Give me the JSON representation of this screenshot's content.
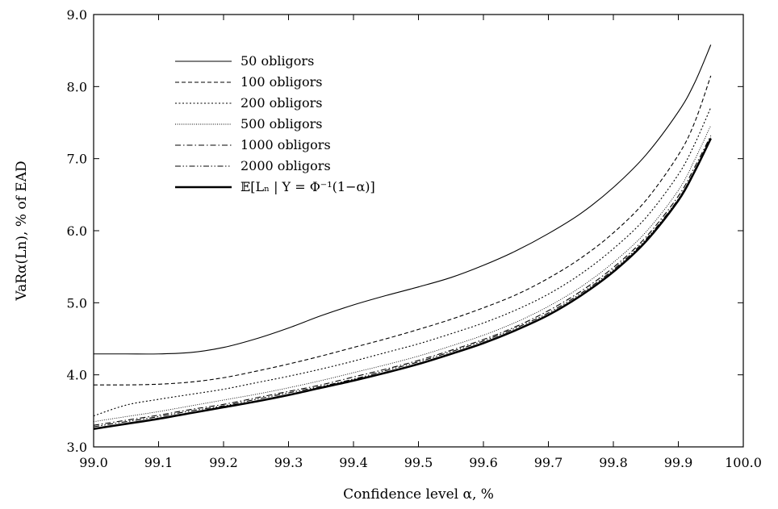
{
  "chart_data": {
    "type": "line",
    "title": "",
    "xlabel": "Confidence level α, %",
    "ylabel": "VaRα(Ln), % of EAD",
    "xlim": [
      99.0,
      100.0
    ],
    "ylim": [
      3.0,
      9.0
    ],
    "xticks": [
      "99.0",
      "99.1",
      "99.2",
      "99.3",
      "99.4",
      "99.5",
      "99.6",
      "99.7",
      "99.8",
      "99.9",
      "100.0"
    ],
    "yticks": [
      "3.0",
      "4.0",
      "5.0",
      "6.0",
      "7.0",
      "8.0",
      "9.0"
    ],
    "grid": false,
    "legend_position": "top-left",
    "x": [
      99.0,
      99.05,
      99.1,
      99.15,
      99.2,
      99.25,
      99.3,
      99.35,
      99.4,
      99.45,
      99.5,
      99.55,
      99.6,
      99.65,
      99.7,
      99.75,
      99.8,
      99.85,
      99.9,
      99.925,
      99.95
    ],
    "series": [
      {
        "name": "50 obligors",
        "style": "solid",
        "values": [
          4.29,
          4.29,
          4.29,
          4.31,
          4.38,
          4.5,
          4.65,
          4.82,
          4.97,
          5.1,
          5.22,
          5.35,
          5.52,
          5.72,
          5.96,
          6.24,
          6.6,
          7.05,
          7.65,
          8.05,
          8.58
        ]
      },
      {
        "name": "100 obligors",
        "style": "dashed",
        "values": [
          3.86,
          3.86,
          3.87,
          3.9,
          3.96,
          4.05,
          4.15,
          4.26,
          4.38,
          4.5,
          4.63,
          4.77,
          4.93,
          5.11,
          5.34,
          5.62,
          5.97,
          6.42,
          7.05,
          7.5,
          8.15
        ]
      },
      {
        "name": "200 obligors",
        "style": "dotted",
        "values": [
          3.43,
          3.58,
          3.66,
          3.73,
          3.8,
          3.89,
          3.98,
          4.08,
          4.19,
          4.31,
          4.43,
          4.57,
          4.72,
          4.9,
          5.12,
          5.4,
          5.75,
          6.18,
          6.78,
          7.2,
          7.71
        ]
      },
      {
        "name": "500 obligors",
        "style": "fine-dotted",
        "values": [
          3.35,
          3.42,
          3.49,
          3.57,
          3.65,
          3.73,
          3.82,
          3.92,
          4.03,
          4.14,
          4.26,
          4.4,
          4.55,
          4.73,
          4.95,
          5.22,
          5.56,
          5.98,
          6.56,
          6.98,
          7.46
        ]
      },
      {
        "name": "1000 obligors",
        "style": "dash-dot",
        "values": [
          3.3,
          3.37,
          3.44,
          3.52,
          3.59,
          3.68,
          3.77,
          3.86,
          3.97,
          4.08,
          4.2,
          4.34,
          4.49,
          4.67,
          4.89,
          5.16,
          5.49,
          5.91,
          6.48,
          6.88,
          7.32
        ]
      },
      {
        "name": "2000 obligors",
        "style": "dash-dot-dot",
        "values": [
          3.28,
          3.35,
          3.42,
          3.5,
          3.57,
          3.66,
          3.75,
          3.84,
          3.94,
          4.06,
          4.18,
          4.32,
          4.47,
          4.65,
          4.86,
          5.13,
          5.46,
          5.88,
          6.44,
          6.84,
          7.29
        ]
      },
      {
        "name": "𝔼[Lₙ | Y = Φ⁻¹(1−α)]",
        "style": "thick-solid",
        "values": [
          3.25,
          3.32,
          3.39,
          3.47,
          3.55,
          3.63,
          3.72,
          3.82,
          3.92,
          4.03,
          4.15,
          4.29,
          4.44,
          4.62,
          4.83,
          5.1,
          5.43,
          5.85,
          6.42,
          6.82,
          7.28
        ]
      }
    ]
  }
}
